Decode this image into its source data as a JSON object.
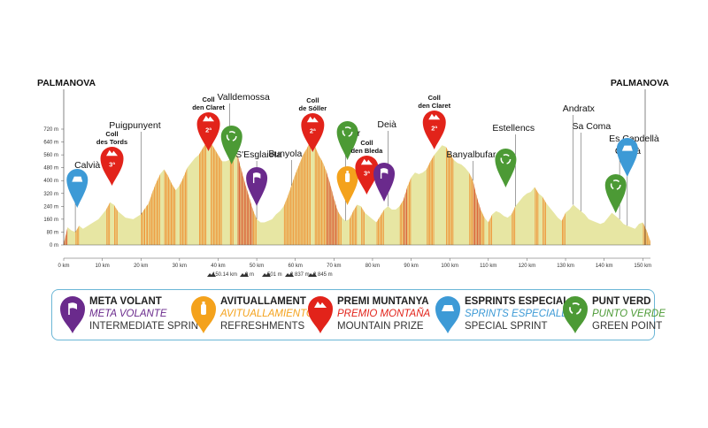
{
  "chart_data": {
    "type": "area",
    "title": "",
    "xlabel": "",
    "ylabel": "",
    "xlim": [
      0,
      152
    ],
    "ylim": [
      0,
      720
    ],
    "x_ticks": [
      "0 km",
      "10 km",
      "20 km",
      "30 km",
      "40 km",
      "50 km",
      "60 km",
      "70 km",
      "80 km",
      "90 km",
      "100 km",
      "110 km",
      "120 km",
      "130 km",
      "140 km",
      "150 km"
    ],
    "y_ticks": [
      "0 m",
      "80 m",
      "160 m",
      "240 m",
      "320 m",
      "400 m",
      "480 m",
      "560 m",
      "640 m",
      "720 m"
    ],
    "profile": {
      "x": [
        0,
        1,
        2,
        3,
        4,
        5,
        7,
        9,
        11,
        12,
        13,
        14,
        15,
        16,
        18,
        20,
        22,
        23,
        24,
        25,
        26,
        27,
        28,
        29,
        30,
        31,
        32,
        33,
        34,
        35,
        36,
        37,
        38,
        39,
        40,
        41,
        42,
        43,
        44,
        45,
        46,
        47,
        48,
        49,
        50,
        51,
        52,
        53,
        54,
        55,
        56,
        57,
        58,
        59,
        60,
        61,
        62,
        63,
        64,
        65,
        66,
        67,
        68,
        69,
        70,
        71,
        72,
        73,
        74,
        75,
        76,
        77,
        78,
        79,
        80,
        81,
        82,
        83,
        84,
        85,
        86,
        87,
        88,
        89,
        90,
        91,
        92,
        93,
        94,
        95,
        96,
        97,
        98,
        99,
        100,
        101,
        102,
        103,
        104,
        105,
        106,
        107,
        108,
        109,
        110,
        111,
        112,
        113,
        114,
        115,
        116,
        117,
        118,
        119,
        120,
        121,
        122,
        123,
        124,
        125,
        126,
        127,
        128,
        129,
        130,
        131,
        132,
        133,
        134,
        135,
        136,
        137,
        138,
        139,
        140,
        141,
        142,
        143,
        144,
        145,
        146,
        147,
        148,
        149,
        150,
        151,
        152
      ],
      "y": [
        10,
        110,
        90,
        80,
        120,
        100,
        130,
        160,
        220,
        265,
        250,
        210,
        190,
        170,
        160,
        190,
        260,
        330,
        390,
        440,
        470,
        430,
        380,
        340,
        370,
        420,
        480,
        510,
        540,
        560,
        600,
        640,
        640,
        600,
        560,
        520,
        520,
        530,
        570,
        560,
        470,
        380,
        300,
        220,
        160,
        140,
        140,
        150,
        160,
        190,
        210,
        240,
        300,
        370,
        440,
        500,
        560,
        600,
        650,
        620,
        560,
        520,
        460,
        380,
        290,
        210,
        170,
        150,
        160,
        210,
        250,
        240,
        200,
        180,
        160,
        140,
        180,
        220,
        240,
        220,
        220,
        240,
        280,
        360,
        420,
        450,
        440,
        450,
        470,
        520,
        560,
        590,
        620,
        610,
        570,
        530,
        510,
        500,
        480,
        450,
        400,
        300,
        220,
        170,
        140,
        190,
        210,
        200,
        180,
        170,
        190,
        240,
        270,
        300,
        320,
        330,
        360,
        320,
        300,
        260,
        230,
        200,
        170,
        150,
        200,
        220,
        250,
        230,
        210,
        190,
        160,
        150,
        140,
        130,
        140,
        170,
        200,
        180,
        160,
        130,
        120,
        110,
        100,
        130,
        140,
        90,
        20
      ]
    },
    "places": [
      {
        "name": "Calvià",
        "km": 3
      },
      {
        "name": "Puigpunyent",
        "km": 20
      },
      {
        "name": "Valldemossa",
        "km": 43
      },
      {
        "name": "S'Esglaieta",
        "km": 50
      },
      {
        "name": "Bunyola",
        "km": 59
      },
      {
        "name": "Sóller",
        "km": 73
      },
      {
        "name": "Deià",
        "km": 84
      },
      {
        "name": "Banyalbufar",
        "km": 106
      },
      {
        "name": "Estellencs",
        "km": 117
      },
      {
        "name": "Andratx",
        "km": 132
      },
      {
        "name": "Sa Coma",
        "km": 134
      },
      {
        "name": "Es Capdellà",
        "km": 144
      },
      {
        "name": "Calvià",
        "km": 146
      }
    ],
    "ends": {
      "start": "PALMANOVA",
      "finish": "PALMANOVA"
    },
    "markers": [
      {
        "type": "special",
        "km": 3.5,
        "label": []
      },
      {
        "type": "mountain",
        "km": 12.5,
        "label": [
          "Coll",
          "des Tords"
        ],
        "category": "3ª"
      },
      {
        "type": "mountain",
        "km": 37.5,
        "label": [
          "Coll",
          "den Claret"
        ],
        "category": "2ª"
      },
      {
        "type": "green",
        "km": 43.5,
        "label": []
      },
      {
        "type": "sprint",
        "km": 50,
        "label": []
      },
      {
        "type": "mountain",
        "km": 64.5,
        "label": [
          "Coll",
          "de Sóller"
        ],
        "category": "2ª"
      },
      {
        "type": "green",
        "km": 73.5,
        "label": []
      },
      {
        "type": "refresh",
        "km": 73.5,
        "label": []
      },
      {
        "type": "mountain",
        "km": 78.5,
        "label": [
          "Coll",
          "den Bleda"
        ],
        "category": "3ª"
      },
      {
        "type": "sprint",
        "km": 83,
        "label": []
      },
      {
        "type": "mountain",
        "km": 96,
        "label": [
          "Coll",
          "den Claret"
        ],
        "category": "2ª"
      },
      {
        "type": "green",
        "km": 114.5,
        "label": []
      },
      {
        "type": "green",
        "km": 143,
        "label": []
      },
      {
        "type": "special",
        "km": 146,
        "label": []
      }
    ],
    "stats": [
      "150.14 km",
      "9 m",
      "501 m",
      "2 837 m",
      "2 845 m"
    ]
  },
  "legend": [
    {
      "key": "sprint",
      "l1": "META VOLANT",
      "l2": "META VOLANTE",
      "l3": "INTERMEDIATE SPRINT",
      "color": "#6a2a8c"
    },
    {
      "key": "refresh",
      "l1": "AVITUALLAMENT",
      "l2": "AVITUALLAMIENTO",
      "l3": "REFRESHMENTS",
      "color": "#f4a21c"
    },
    {
      "key": "mountain",
      "l1": "PREMI MUNTANYA",
      "l2": "PREMIO MONTAÑA",
      "l3": "MOUNTAIN PRIZE",
      "color": "#e2231a"
    },
    {
      "key": "special",
      "l1": "ESPRINTS ESPECIALS",
      "l2": "SPRINTS ESPECIALES",
      "l3": "SPECIAL SPRINT",
      "color": "#3d9ad6"
    },
    {
      "key": "green",
      "l1": "PUNT VERD",
      "l2": "PUNTO VERDE",
      "l3": "GREEN POINT",
      "color": "#4c9a35"
    }
  ],
  "colors": {
    "profile_base": "#e7e6a3",
    "stripe_orange": "#f08a2a",
    "stripe_red": "#d8431f",
    "axis": "#555555",
    "legend_border": "#6bb6d6"
  }
}
